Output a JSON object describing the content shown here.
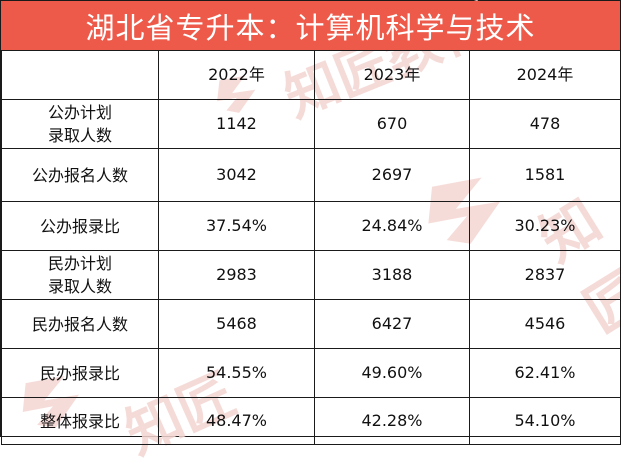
{
  "title": "湖北省专升本：计算机科学与技术",
  "table": {
    "headers": [
      "",
      "2022年",
      "2023年",
      "2024年"
    ],
    "rows": [
      {
        "label_line1": "公办计划",
        "label_line2": "录取人数",
        "values": [
          "1142",
          "670",
          "478"
        ]
      },
      {
        "label": "公办报名人数",
        "values": [
          "3042",
          "2697",
          "1581"
        ]
      },
      {
        "label": "公办报录比",
        "values": [
          "37.54%",
          "24.84%",
          "30.23%"
        ]
      },
      {
        "label_line1": "民办计划",
        "label_line2": "录取人数",
        "values": [
          "2983",
          "3188",
          "2837"
        ]
      },
      {
        "label": "民办报名人数",
        "values": [
          "5468",
          "6427",
          "4546"
        ]
      },
      {
        "label": "民办报录比",
        "values": [
          "54.55%",
          "49.60%",
          "62.41%"
        ]
      },
      {
        "label": "整体报录比",
        "values": [
          "48.47%",
          "42.28%",
          "54.10%"
        ]
      }
    ]
  },
  "watermark": {
    "brand_text": "知匠教育",
    "brand_text_short": "知匠",
    "logo_icon": "stylized-z-logo-icon",
    "color": "#f3d5d2"
  },
  "colors": {
    "title_bg": "#ee5a4a",
    "title_fg": "#ffffff",
    "border": "#1a1a1a"
  }
}
